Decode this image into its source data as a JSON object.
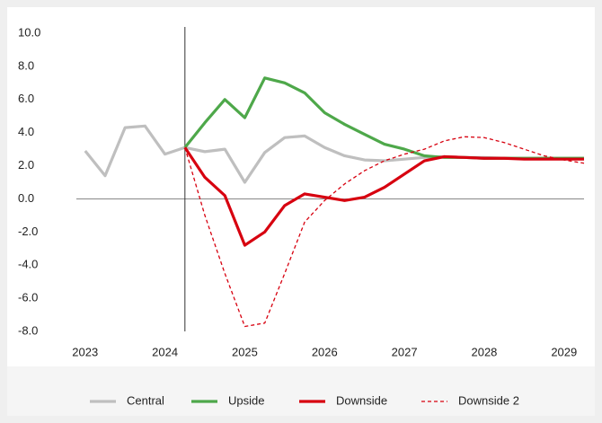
{
  "chart_data": {
    "type": "line",
    "x": [
      2023,
      2023.25,
      2023.5,
      2023.75,
      2024,
      2024.25,
      2024.5,
      2024.75,
      2025,
      2025.25,
      2025.5,
      2025.75,
      2026,
      2026.25,
      2026.5,
      2026.75,
      2027,
      2027.25,
      2027.5,
      2027.75,
      2028,
      2028.25,
      2028.5,
      2028.75,
      2029,
      2029.25
    ],
    "series": [
      {
        "name": "Central",
        "color": "#bfbfbf",
        "dashed": false,
        "values": [
          2.9,
          1.4,
          4.3,
          4.4,
          2.7,
          3.1,
          2.85,
          3.0,
          1.0,
          2.8,
          3.7,
          3.8,
          3.1,
          2.6,
          2.35,
          2.3,
          2.4,
          2.5,
          2.55,
          2.5,
          2.5,
          2.45,
          2.45,
          2.45,
          2.45,
          2.45
        ]
      },
      {
        "name": "Upside",
        "color": "#4ea84a",
        "dashed": false,
        "values": [
          null,
          null,
          null,
          null,
          null,
          3.1,
          4.6,
          6.0,
          4.9,
          7.3,
          7.0,
          6.4,
          5.2,
          4.5,
          3.9,
          3.3,
          3.0,
          2.6,
          2.5,
          2.5,
          2.45,
          2.45,
          2.45,
          2.45,
          2.45,
          2.45
        ]
      },
      {
        "name": "Downside",
        "color": "#d7000f",
        "dashed": false,
        "values": [
          null,
          null,
          null,
          null,
          null,
          3.1,
          1.3,
          0.2,
          -2.8,
          -2.0,
          -0.4,
          0.3,
          0.1,
          -0.1,
          0.1,
          0.7,
          1.5,
          2.3,
          2.55,
          2.5,
          2.45,
          2.45,
          2.4,
          2.4,
          2.4,
          2.4
        ]
      },
      {
        "name": "Downside 2",
        "color": "#d7000f",
        "dashed": true,
        "values": [
          null,
          null,
          null,
          null,
          null,
          3.1,
          -1.0,
          -4.5,
          -7.7,
          -7.5,
          -4.5,
          -1.4,
          -0.1,
          0.9,
          1.7,
          2.3,
          2.7,
          3.0,
          3.5,
          3.75,
          3.7,
          3.4,
          3.0,
          2.6,
          2.35,
          2.15
        ]
      }
    ],
    "xlim": [
      2022.89,
      2029.25
    ],
    "xticks": [
      2023,
      2024,
      2025,
      2026,
      2027,
      2028,
      2029
    ],
    "ylim": [
      -8,
      10
    ],
    "yticks": [
      {
        "value": -8,
        "label": "-8.0"
      },
      {
        "value": -6,
        "label": "-6.0"
      },
      {
        "value": -4,
        "label": "-4.0"
      },
      {
        "value": -2,
        "label": "-2.0"
      },
      {
        "value": 0,
        "label": "0.0"
      },
      {
        "value": 2,
        "label": "2.0"
      },
      {
        "value": 4,
        "label": "4.0"
      },
      {
        "value": 6,
        "label": "6.0"
      },
      {
        "value": 8,
        "label": "8.0"
      },
      {
        "value": 10,
        "label": "10.0"
      }
    ],
    "vline": 2024.25,
    "legend": "bottom"
  }
}
